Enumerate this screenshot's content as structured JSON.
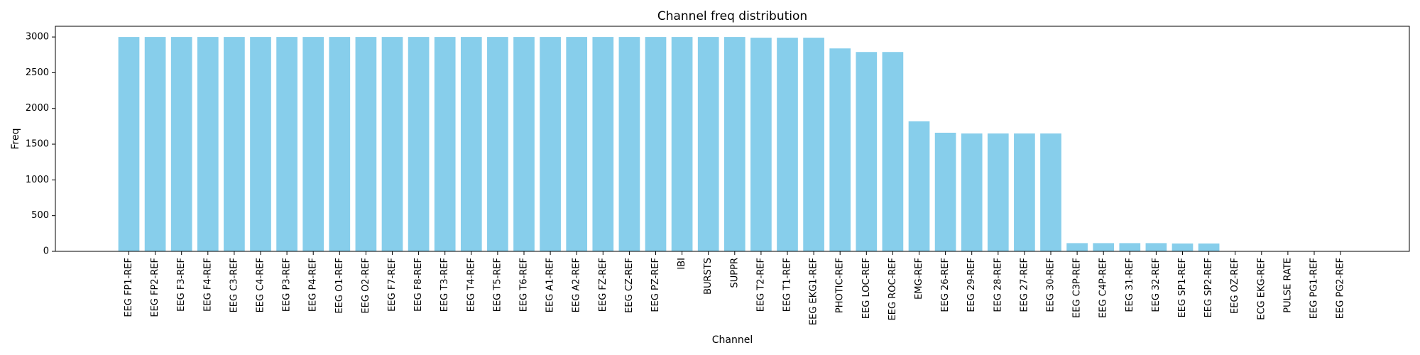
{
  "chart_data": {
    "type": "bar",
    "title": "Channel freq distribution",
    "xlabel": "Channel",
    "ylabel": "Freq",
    "ylim": [
      0,
      3150
    ],
    "yticks": [
      0,
      500,
      1000,
      1500,
      2000,
      2500,
      3000
    ],
    "grid": false,
    "bar_color": "#87ceeb",
    "categories": [
      "EEG FP1-REF",
      "EEG FP2-REF",
      "EEG F3-REF",
      "EEG F4-REF",
      "EEG C3-REF",
      "EEG C4-REF",
      "EEG P3-REF",
      "EEG P4-REF",
      "EEG O1-REF",
      "EEG O2-REF",
      "EEG F7-REF",
      "EEG F8-REF",
      "EEG T3-REF",
      "EEG T4-REF",
      "EEG T5-REF",
      "EEG T6-REF",
      "EEG A1-REF",
      "EEG A2-REF",
      "EEG FZ-REF",
      "EEG CZ-REF",
      "EEG PZ-REF",
      "IBI",
      "BURSTS",
      "SUPPR",
      "EEG T2-REF",
      "EEG T1-REF",
      "EEG EKG1-REF",
      "PHOTIC-REF",
      "EEG LOC-REF",
      "EEG ROC-REF",
      "EMG-REF",
      "EEG 26-REF",
      "EEG 29-REF",
      "EEG 28-REF",
      "EEG 27-REF",
      "EEG 30-REF",
      "EEG C3P-REF",
      "EEG C4P-REF",
      "EEG 31-REF",
      "EEG 32-REF",
      "EEG SP1-REF",
      "EEG SP2-REF",
      "EEG OZ-REF",
      "ECG EKG-REF",
      "PULSE RATE",
      "EEG PG1-REF",
      "EEG PG2-REF"
    ],
    "values": [
      3000,
      3000,
      3000,
      3000,
      3000,
      3000,
      3000,
      3000,
      3000,
      3000,
      3000,
      3000,
      3000,
      3000,
      3000,
      3000,
      3000,
      3000,
      3000,
      3000,
      3000,
      3000,
      3000,
      3000,
      2990,
      2990,
      2990,
      2840,
      2790,
      2790,
      1820,
      1660,
      1650,
      1650,
      1650,
      1650,
      115,
      115,
      115,
      115,
      110,
      110,
      2,
      2,
      2,
      2,
      2
    ]
  }
}
